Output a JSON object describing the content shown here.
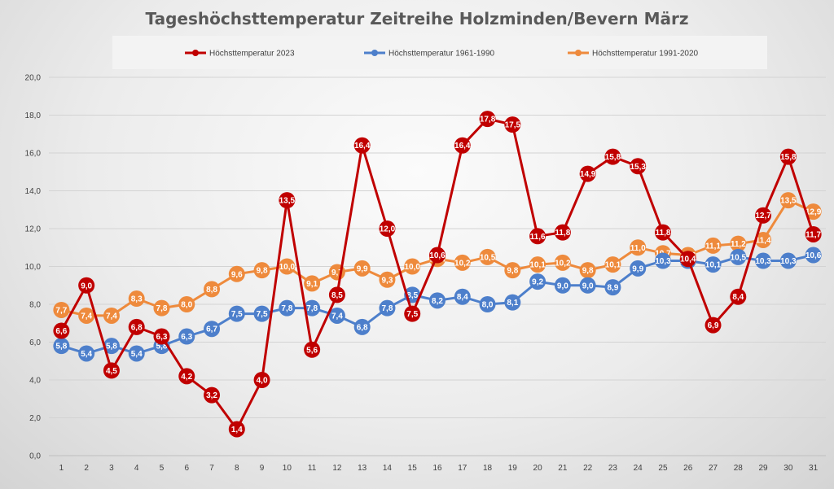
{
  "chart_data": {
    "type": "line",
    "title": "Tageshöchsttemperatur Zeitreihe Holzminden/Bevern März",
    "xlabel": "",
    "ylabel": "",
    "x": [
      1,
      2,
      3,
      4,
      5,
      6,
      7,
      8,
      9,
      10,
      11,
      12,
      13,
      14,
      15,
      16,
      17,
      18,
      19,
      20,
      21,
      22,
      23,
      24,
      25,
      26,
      27,
      28,
      29,
      30,
      31
    ],
    "ylim": [
      0,
      20
    ],
    "yticks": [
      "0,0",
      "2,0",
      "4,0",
      "6,0",
      "8,0",
      "10,0",
      "12,0",
      "14,0",
      "16,0",
      "18,0",
      "20,0"
    ],
    "grid": true,
    "legend_position": "top",
    "series": [
      {
        "name": "Höchsttemperatur 1991-2020",
        "color": "#ee8a3c",
        "values": [
          7.7,
          7.4,
          7.4,
          8.3,
          7.8,
          8.0,
          8.8,
          9.6,
          9.8,
          10.0,
          9.1,
          9.7,
          9.9,
          9.3,
          10.0,
          10.4,
          10.2,
          10.5,
          9.8,
          10.1,
          10.2,
          9.8,
          10.1,
          11.0,
          10.7,
          10.6,
          11.1,
          11.2,
          11.4,
          13.5,
          12.9
        ]
      },
      {
        "name": "Höchsttemperatur 1961-1990",
        "color": "#4d7fcb",
        "values": [
          5.8,
          5.4,
          5.8,
          5.4,
          5.8,
          6.3,
          6.7,
          7.5,
          7.5,
          7.8,
          7.8,
          7.4,
          6.8,
          7.8,
          8.5,
          8.2,
          8.4,
          8.0,
          8.1,
          9.2,
          9.0,
          9.0,
          8.9,
          9.9,
          10.3,
          10.3,
          10.1,
          10.5,
          10.3,
          10.3,
          10.6
        ]
      },
      {
        "name": "Höchsttemperatur 2023",
        "color": "#c00000",
        "values": [
          6.6,
          9.0,
          4.5,
          6.8,
          6.3,
          4.2,
          3.2,
          1.4,
          4.0,
          13.5,
          5.6,
          8.5,
          16.4,
          12.0,
          7.5,
          10.6,
          16.4,
          17.8,
          17.5,
          11.6,
          11.8,
          14.9,
          15.8,
          15.3,
          11.8,
          10.4,
          6.9,
          8.4,
          12.7,
          15.8,
          11.7
        ]
      }
    ],
    "legend_order": [
      2,
      1,
      0
    ]
  }
}
